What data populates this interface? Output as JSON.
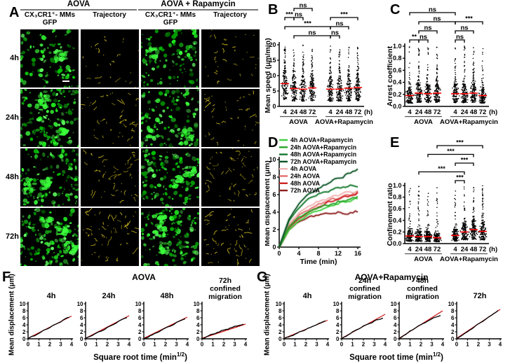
{
  "panelA": {
    "label": "A",
    "groups": [
      {
        "title": "AOVA"
      },
      {
        "title": "AOVA + Rapamycin"
      }
    ],
    "column_labels": [
      [
        "CX₃CR1⁺- MMs",
        "GFP"
      ],
      [
        "Trajectory"
      ],
      [
        "CX₃CR1⁺- MMs",
        "GFP"
      ],
      [
        "Trajectory"
      ]
    ],
    "row_labels": [
      "4h",
      "24h",
      "48h",
      "72h"
    ]
  },
  "colors": {
    "median_line": "#ff0000",
    "fit_line": "#cc1111",
    "data_trace": "#000000",
    "header_line": "#787878",
    "gfp_greens": [
      "#00c800",
      "#1ee61e",
      "#3cff3c",
      "#00a000",
      "#64ff64"
    ],
    "trajectory_yellow": "#cdbb1e"
  },
  "chart_data": [
    {
      "id": "B",
      "panel_label": "B",
      "type": "scatter-column",
      "ylabel": "Mean speed (μm/min)",
      "ylim": [
        0,
        20
      ],
      "yticks": [
        "0",
        "5",
        "10",
        "15",
        "20"
      ],
      "categories": [
        "4",
        "24",
        "48",
        "72",
        "4",
        "24",
        "48",
        "72"
      ],
      "x_unit": "(h)",
      "group_labels": [
        "AOVA",
        "AOVA+Rapamycin"
      ],
      "medians": [
        7.4,
        5.8,
        5.6,
        6.0,
        5.6,
        5.6,
        5.9,
        6.1
      ],
      "value_range": [
        0.8,
        19.5
      ],
      "points_per_column": 150,
      "significance": [
        {
          "from": 2,
          "to": 4,
          "label": "ns",
          "level": 1
        },
        {
          "from": 1,
          "to": 2,
          "label": "***",
          "level": 2
        },
        {
          "from": 2,
          "to": 3,
          "label": "ns",
          "level": 2
        },
        {
          "from": 5,
          "to": 8,
          "label": "***",
          "level": 2
        },
        {
          "from": 1,
          "to": 5,
          "label": "***",
          "level": 3
        },
        {
          "from": 5,
          "to": 7,
          "label": "ns",
          "level": 3
        },
        {
          "from": 2,
          "to": 5,
          "label": "ns",
          "level": 4
        },
        {
          "from": 5,
          "to": 6,
          "label": "ns",
          "level": 4
        }
      ]
    },
    {
      "id": "C",
      "panel_label": "C",
      "type": "scatter-column",
      "ylabel": "Arrest coefficient",
      "ylim": [
        0,
        1
      ],
      "yticks": [
        "0.0",
        "0.2",
        "0.4",
        "0.6",
        "0.8",
        "1.0"
      ],
      "categories": [
        "4",
        "24",
        "48",
        "72",
        "4",
        "24",
        "48",
        "72"
      ],
      "x_unit": "(h)",
      "group_labels": [
        "AOVA",
        "AOVA+Rapamycin"
      ],
      "medians": [
        0.18,
        0.22,
        0.21,
        0.22,
        0.21,
        0.21,
        0.22,
        0.18
      ],
      "value_range": [
        0.01,
        1.0
      ],
      "points_per_column": 160,
      "significance": [
        {
          "from": 1,
          "to": 5,
          "label": "ns",
          "level": 1
        },
        {
          "from": 2,
          "to": 5,
          "label": "ns",
          "level": 2
        },
        {
          "from": 5,
          "to": 8,
          "label": "***",
          "level": 2
        },
        {
          "from": 2,
          "to": 4,
          "label": "ns",
          "level": 3
        },
        {
          "from": 5,
          "to": 7,
          "label": "ns",
          "level": 3
        },
        {
          "from": 1,
          "to": 2,
          "label": "**",
          "level": 4
        },
        {
          "from": 2,
          "to": 3,
          "label": "ns",
          "level": 4
        },
        {
          "from": 5,
          "to": 6,
          "label": "ns",
          "level": 4
        }
      ]
    },
    {
      "id": "D",
      "panel_label": "D",
      "type": "line",
      "ylabel": "Mean displacement (μm)",
      "xlabel": "Time (min)",
      "ylim": [
        0,
        10
      ],
      "yticks": [
        0,
        2,
        4,
        6,
        8,
        10
      ],
      "xlim": [
        0,
        16
      ],
      "xticks": [
        0,
        4,
        8,
        12,
        16
      ],
      "x": [
        0,
        2,
        4,
        6,
        8,
        10,
        12,
        14,
        16
      ],
      "legend_position": "top-left",
      "series": [
        {
          "name": "4h AOVA+Rapamycin",
          "color": "#3ecf3e",
          "values": [
            0,
            2.0,
            3.0,
            3.7,
            4.2,
            4.6,
            5.0,
            5.2,
            5.5
          ]
        },
        {
          "name": "24h AOVA+Rapamycin",
          "color": "#28a428",
          "values": [
            0,
            2.3,
            3.4,
            4.0,
            4.5,
            4.8,
            5.1,
            5.4,
            5.7
          ]
        },
        {
          "name": "48h AOVA+Rapamycin",
          "color": "#147a30",
          "values": [
            0,
            3.0,
            4.5,
            5.5,
            6.1,
            6.4,
            6.8,
            6.9,
            7.0
          ]
        },
        {
          "name": "72h AOVA+Rapamycin",
          "color": "#0c5526",
          "values": [
            0,
            3.2,
            5.0,
            6.1,
            6.7,
            7.3,
            7.9,
            8.3,
            9.0
          ]
        },
        {
          "name": "4h AOVA",
          "color": "#f2b4b4",
          "values": [
            0,
            2.6,
            3.9,
            4.7,
            5.2,
            5.6,
            6.0,
            6.2,
            6.5
          ]
        },
        {
          "name": "24h AOVA",
          "color": "#e47070",
          "values": [
            0,
            2.4,
            3.6,
            4.3,
            4.9,
            5.3,
            5.7,
            5.9,
            6.2
          ]
        },
        {
          "name": "48h AOVA",
          "color": "#cf2626",
          "values": [
            0,
            2.2,
            3.2,
            4.0,
            4.6,
            5.1,
            5.5,
            5.8,
            6.1
          ]
        },
        {
          "name": "72h AOVA",
          "color": "#8e2020",
          "values": [
            0,
            2.0,
            2.9,
            3.4,
            3.7,
            3.8,
            3.9,
            3.9,
            4.0
          ]
        }
      ]
    },
    {
      "id": "E",
      "panel_label": "E",
      "type": "scatter-column",
      "ylabel": "Confinement ratio",
      "ylim": [
        0,
        1
      ],
      "yticks": [
        "0.0",
        "0.2",
        "0.4",
        "0.6",
        "0.8",
        "1.0"
      ],
      "categories": [
        "4",
        "24",
        "48",
        "72",
        "4",
        "24",
        "48",
        "72"
      ],
      "x_unit": "(h)",
      "group_labels": [
        "AOVA",
        "AOVA+Rapamycin"
      ],
      "medians": [
        0.13,
        0.12,
        0.12,
        0.1,
        0.14,
        0.2,
        0.24,
        0.21
      ],
      "value_range": [
        0.01,
        1.0
      ],
      "points_per_column": 170,
      "significance": [
        {
          "from": 4,
          "to": 8,
          "label": "***",
          "level": 1
        },
        {
          "from": 3,
          "to": 7,
          "label": "***",
          "level": 2
        },
        {
          "from": 5,
          "to": 7,
          "label": "***",
          "level": 3
        },
        {
          "from": 2,
          "to": 6,
          "label": "***",
          "level": 4
        },
        {
          "from": 5,
          "to": 6,
          "label": "***",
          "level": 5
        }
      ]
    },
    {
      "id": "F",
      "panel_label": "F",
      "type": "small-multiples-line",
      "title": "AOVA",
      "ylabel": "Mean displacement (μm)",
      "xlabel_main": "Square root time (min",
      "xlabel_sup": "1/2",
      "xlabel_end": ")",
      "ylim": [
        0,
        10
      ],
      "yticks": [
        0,
        2,
        4,
        6,
        8,
        10
      ],
      "xlim": [
        0,
        4
      ],
      "xticks": [
        0,
        1,
        2,
        3,
        4
      ],
      "panels": [
        {
          "title_lines": [
            "4h"
          ],
          "black_end": 6.6,
          "fit_end": 6.5,
          "confined": false
        },
        {
          "title_lines": [
            "24h"
          ],
          "black_end": 6.5,
          "fit_end": 6.6,
          "confined": false
        },
        {
          "title_lines": [
            "48h"
          ],
          "black_end": 6.1,
          "fit_end": 6.2,
          "confined": false
        },
        {
          "title_lines": [
            "72h",
            "confined",
            "migration"
          ],
          "black_end": 4.3,
          "fit_end": 4.2,
          "confined": true
        }
      ]
    },
    {
      "id": "G",
      "panel_label": "G",
      "type": "small-multiples-line",
      "title": "AOVA+Rapamycin",
      "ylabel": "Mean displacement (μm)",
      "xlabel_main": "Square root time (min",
      "xlabel_sup": "1/2",
      "xlabel_end": ")",
      "ylim": [
        0,
        10
      ],
      "yticks": [
        0,
        2,
        4,
        6,
        8,
        10
      ],
      "xlim": [
        0,
        4
      ],
      "xticks": [
        0,
        1,
        2,
        3,
        4
      ],
      "panels": [
        {
          "title_lines": [
            "4h"
          ],
          "black_end": 5.4,
          "fit_end": 5.3,
          "confined": false
        },
        {
          "title_lines": [
            "24h",
            "confined",
            "migration"
          ],
          "black_end": 6.2,
          "fit_end": 7.0,
          "confined": true
        },
        {
          "title_lines": [
            "48h",
            "confined",
            "migration"
          ],
          "black_end": 7.0,
          "fit_end": 8.0,
          "confined": true
        },
        {
          "title_lines": [
            "72h"
          ],
          "black_end": 8.5,
          "fit_end": 8.4,
          "confined": false
        }
      ]
    }
  ]
}
